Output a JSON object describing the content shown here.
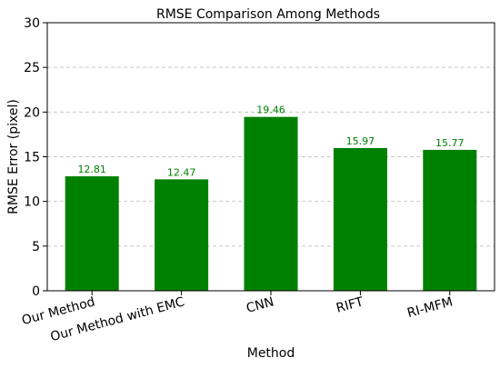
{
  "chart_data": {
    "type": "bar",
    "title": "RMSE Comparison Among Methods",
    "xlabel": "Method",
    "ylabel": "RMSE Error (pixel)",
    "categories": [
      "Our Method",
      "Our Method with EMC",
      "CNN",
      "RIFT",
      "RI-MFM"
    ],
    "values": [
      12.81,
      12.47,
      19.46,
      15.97,
      15.77
    ],
    "value_labels": [
      "12.81",
      "12.47",
      "19.46",
      "15.97",
      "15.77"
    ],
    "ylim": [
      0,
      30
    ],
    "yticks": [
      0,
      5,
      10,
      15,
      20,
      25,
      30
    ],
    "ytick_labels": [
      "0",
      "5",
      "10",
      "15",
      "20",
      "25",
      "30"
    ],
    "grid": "horizontal dashed",
    "bar_color": "#008000",
    "label_color": "#008000",
    "grid_color": "#c8c8c8"
  }
}
